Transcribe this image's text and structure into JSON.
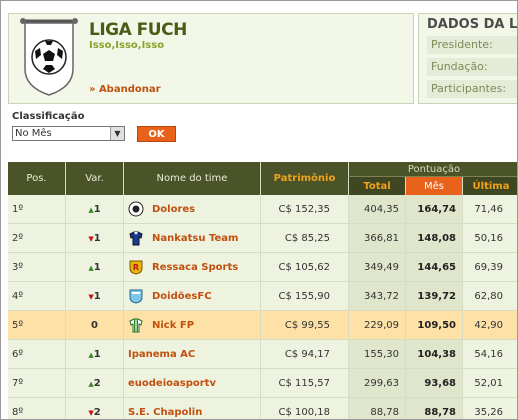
{
  "league": {
    "title": "LIGA FUCH",
    "subtitle": "Isso,Isso,Isso",
    "abandon_label": "» Abandonar"
  },
  "dados": {
    "title": "DADOS DA LIGA",
    "rows": [
      "Presidente:",
      "Fundação:",
      "Participantes:"
    ]
  },
  "filter": {
    "label": "Classificação",
    "selected": "No Mês",
    "ok_label": "OK"
  },
  "table": {
    "headers": {
      "pos": "Pos.",
      "var": "Var.",
      "team": "Nome do time",
      "patrimonio": "Patrimônio",
      "pontuacao": "Pontuação",
      "total": "Total",
      "mes": "Mês",
      "ultima": "Última"
    },
    "rows": [
      {
        "pos": "1º",
        "var": "1",
        "dir": "up",
        "team": "Dolores",
        "logo": "dark-ball",
        "pat": "C$ 152,35",
        "total": "404,35",
        "mes": "164,74",
        "ult": "71,46"
      },
      {
        "pos": "2º",
        "var": "1",
        "dir": "down",
        "team": "Nankatsu Team",
        "logo": "blue-shirt",
        "pat": "C$ 85,25",
        "total": "366,81",
        "mes": "148,08",
        "ult": "50,16"
      },
      {
        "pos": "3º",
        "var": "1",
        "dir": "up",
        "team": "Ressaca Sports",
        "logo": "red-shield",
        "pat": "C$ 105,62",
        "total": "349,49",
        "mes": "144,65",
        "ult": "69,39"
      },
      {
        "pos": "4º",
        "var": "1",
        "dir": "down",
        "team": "DoidõesFC",
        "logo": "cyan-shield",
        "pat": "C$ 155,90",
        "total": "343,72",
        "mes": "139,72",
        "ult": "62,80"
      },
      {
        "pos": "5º",
        "var": "0",
        "dir": "none",
        "team": "Nick FP",
        "logo": "green-shirt",
        "pat": "C$ 99,55",
        "total": "229,09",
        "mes": "109,50",
        "ult": "42,90",
        "highlight": true
      },
      {
        "pos": "6º",
        "var": "1",
        "dir": "up",
        "team": "Ipanema AC",
        "logo": "",
        "pat": "C$ 94,17",
        "total": "155,30",
        "mes": "104,38",
        "ult": "54,16"
      },
      {
        "pos": "7º",
        "var": "2",
        "dir": "up",
        "team": "euodeioasportv",
        "logo": "",
        "pat": "C$ 115,57",
        "total": "299,63",
        "mes": "93,68",
        "ult": "52,01"
      },
      {
        "pos": "8º",
        "var": "2",
        "dir": "down",
        "team": "S.E. Chapolin",
        "logo": "",
        "pat": "C$ 100,18",
        "total": "88,78",
        "mes": "88,78",
        "ult": "35,26"
      }
    ]
  }
}
